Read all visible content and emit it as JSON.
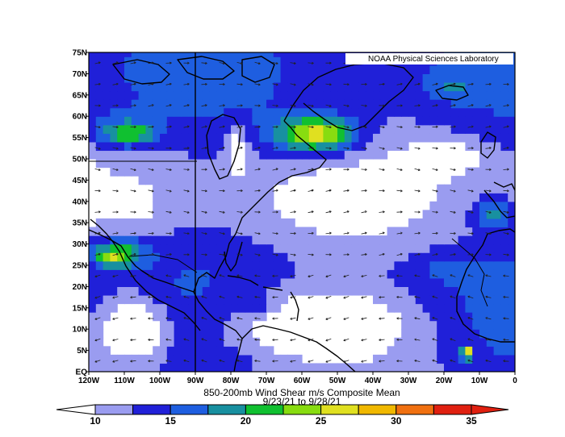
{
  "chart_data": {
    "type": "heatmap",
    "title": "850-200mb Wind Shear m/s Composite Mean",
    "subtitle": "9/23/21  to 9/28/21",
    "credit": "NOAA Physical Sciences Laboratory",
    "x_ticks": [
      "120W",
      "110W",
      "100W",
      "90W",
      "80W",
      "70W",
      "60W",
      "50W",
      "40W",
      "30W",
      "20W",
      "10W",
      "0"
    ],
    "y_ticks": [
      "EQ",
      "5N",
      "10N",
      "15N",
      "20N",
      "25N",
      "30N",
      "35N",
      "40N",
      "45N",
      "50N",
      "55N",
      "60N",
      "65N",
      "70N",
      "75N"
    ],
    "xlim": [
      -120,
      0
    ],
    "ylim": [
      0,
      75
    ],
    "colorbar": {
      "labels": [
        "10",
        "15",
        "20",
        "25",
        "30",
        "35"
      ],
      "levels": [
        10,
        12.5,
        15,
        17.5,
        20,
        22.5,
        25,
        27.5,
        30,
        32.5,
        35
      ],
      "colors": [
        "#9a9cf0",
        "#2020d8",
        "#1e5ee0",
        "#1890a0",
        "#10c030",
        "#88dc10",
        "#e0e020",
        "#f0b800",
        "#f07010",
        "#e02010"
      ]
    },
    "fields": [
      {
        "lon": [
          -120,
          -100
        ],
        "lat": [
          52,
          62
        ],
        "value": 18
      },
      {
        "lon": [
          -115,
          -102
        ],
        "lat": [
          54,
          58
        ],
        "value": 23
      },
      {
        "lon": [
          -72,
          -42
        ],
        "lat": [
          50,
          62
        ],
        "value": 20
      },
      {
        "lon": [
          -65,
          -47
        ],
        "lat": [
          53,
          59
        ],
        "value": 26
      },
      {
        "lon": [
          -120,
          -102
        ],
        "lat": [
          24,
          32
        ],
        "value": 20
      },
      {
        "lon": [
          -118,
          -108
        ],
        "lat": [
          25,
          29
        ],
        "value": 26
      },
      {
        "lon": [
          -30,
          0
        ],
        "lat": [
          20,
          28
        ],
        "value": 16
      },
      {
        "lon": [
          -12,
          0
        ],
        "lat": [
          33,
          41
        ],
        "value": 18
      },
      {
        "lon": [
          -25,
          -10
        ],
        "lat": [
          64,
          70
        ],
        "value": 18
      },
      {
        "lon": [
          -82,
          -68
        ],
        "lat": [
          13,
          18
        ],
        "value": 15
      },
      {
        "lon": [
          -90,
          -75
        ],
        "lat": [
          0,
          5
        ],
        "value": 15
      },
      {
        "lon": [
          -15,
          -12
        ],
        "lat": [
          3,
          6
        ],
        "value": 30
      }
    ],
    "calm_regions": [
      {
        "lon": [
          -90,
          -20
        ],
        "lat": [
          0,
          22
        ],
        "value": 6
      },
      {
        "lon": [
          -120,
          -95
        ],
        "lat": [
          0,
          20
        ],
        "value": 6
      },
      {
        "lon": [
          -82,
          -74
        ],
        "lat": [
          45,
          58
        ],
        "value": 6
      },
      {
        "lon": [
          -35,
          -5
        ],
        "lat": [
          45,
          56
        ],
        "value": 8
      },
      {
        "lon": [
          -68,
          -35
        ],
        "lat": [
          34,
          44
        ],
        "value": 8
      },
      {
        "lon": [
          -115,
          -100
        ],
        "lat": [
          34,
          45
        ],
        "value": 8
      }
    ],
    "grid": false,
    "vectors": true
  }
}
